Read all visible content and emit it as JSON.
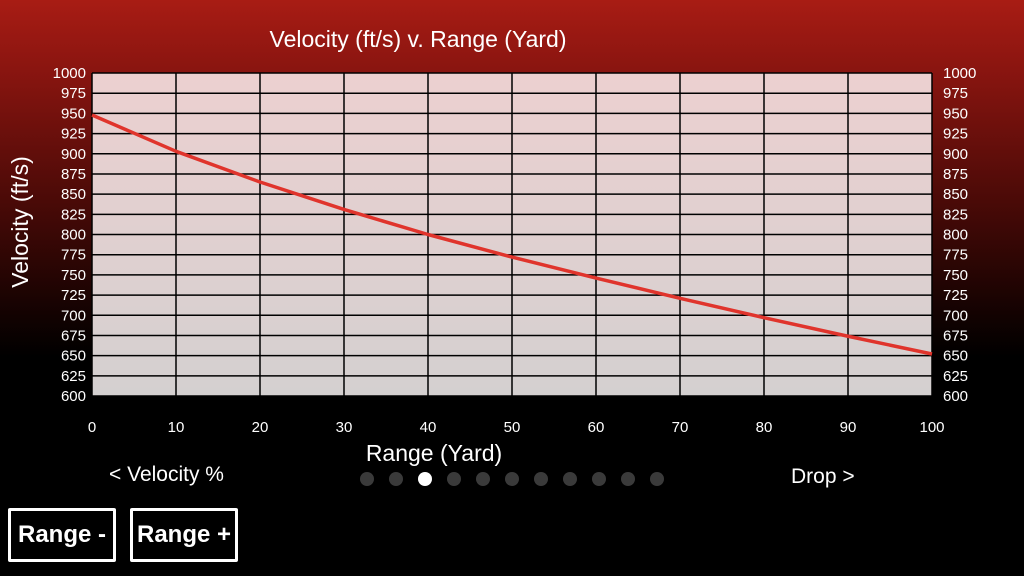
{
  "chart_data": {
    "type": "line",
    "title": "Velocity (ft/s) v. Range (Yard)",
    "xlabel": "Range (Yard)",
    "ylabel": "Velocity (ft/s)",
    "xlim": [
      0,
      100
    ],
    "ylim": [
      600,
      1000
    ],
    "x_ticks": [
      0,
      10,
      20,
      30,
      40,
      50,
      60,
      70,
      80,
      90,
      100
    ],
    "y_ticks": [
      600,
      625,
      650,
      675,
      700,
      725,
      750,
      775,
      800,
      825,
      850,
      875,
      900,
      925,
      950,
      975,
      1000
    ],
    "grid": true,
    "series": [
      {
        "color": "#e0342c",
        "x": [
          0,
          10,
          20,
          30,
          40,
          50,
          60,
          70,
          80,
          90,
          100
        ],
        "y": [
          948,
          903,
          865,
          831,
          800,
          772,
          746,
          721,
          697,
          674,
          652
        ]
      }
    ]
  },
  "nav": {
    "prev_label": "< Velocity %",
    "next_label": "Drop >",
    "page_count": 11,
    "active_page": 3
  },
  "buttons": {
    "range_minus": "Range -",
    "range_plus": "Range +"
  }
}
